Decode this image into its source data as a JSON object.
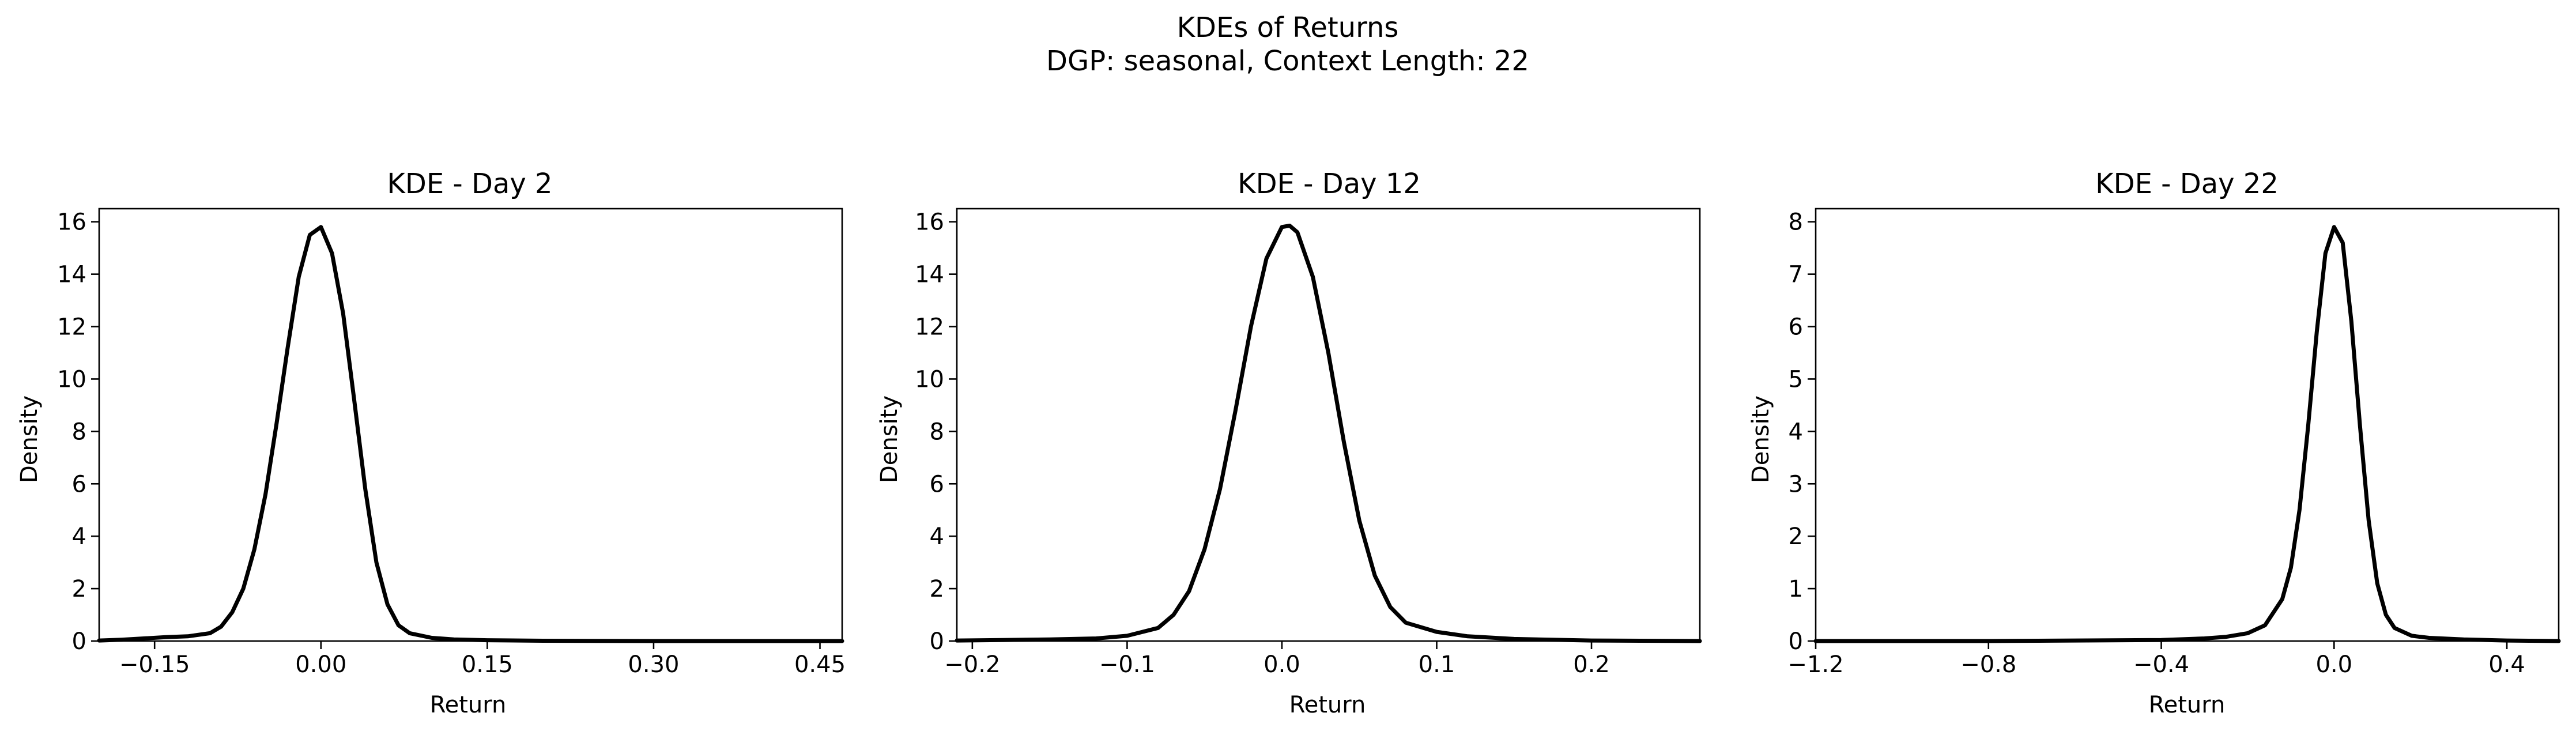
{
  "figure": {
    "title_line1": "KDEs of Returns",
    "title_line2": "DGP: seasonal, Context Length: 22",
    "line_color": "#000000"
  },
  "chart_data": [
    {
      "type": "line",
      "title": "KDE - Day 2",
      "xlabel": "Return",
      "ylabel": "Density",
      "xlim": [
        -0.2,
        0.47
      ],
      "ylim": [
        0,
        16.5
      ],
      "xticks": [
        -0.15,
        0.0,
        0.15,
        0.3,
        0.45
      ],
      "xtick_labels": [
        "−0.15",
        "0.00",
        "0.15",
        "0.30",
        "0.45"
      ],
      "yticks": [
        0,
        2,
        4,
        6,
        8,
        10,
        12,
        14,
        16
      ],
      "ytick_labels": [
        "0",
        "2",
        "4",
        "6",
        "8",
        "10",
        "12",
        "14",
        "16"
      ],
      "grid": false,
      "series": [
        {
          "x": [
            -0.2,
            -0.18,
            -0.16,
            -0.14,
            -0.12,
            -0.1,
            -0.09,
            -0.08,
            -0.07,
            -0.06,
            -0.05,
            -0.04,
            -0.03,
            -0.02,
            -0.01,
            0.0,
            0.01,
            0.02,
            0.03,
            0.04,
            0.05,
            0.06,
            0.07,
            0.08,
            0.1,
            0.12,
            0.15,
            0.2,
            0.3,
            0.47
          ],
          "y": [
            0.02,
            0.05,
            0.1,
            0.15,
            0.18,
            0.3,
            0.55,
            1.1,
            2.0,
            3.5,
            5.6,
            8.3,
            11.2,
            13.9,
            15.5,
            15.8,
            14.8,
            12.5,
            9.2,
            5.8,
            3.0,
            1.4,
            0.6,
            0.3,
            0.12,
            0.06,
            0.03,
            0.01,
            0.0,
            0.0
          ]
        }
      ]
    },
    {
      "type": "line",
      "title": "KDE - Day 12",
      "xlabel": "Return",
      "ylabel": "Density",
      "xlim": [
        -0.21,
        0.27
      ],
      "ylim": [
        0,
        16.5
      ],
      "xticks": [
        -0.2,
        -0.1,
        0.0,
        0.1,
        0.2
      ],
      "xtick_labels": [
        "−0.2",
        "−0.1",
        "0.0",
        "0.1",
        "0.2"
      ],
      "yticks": [
        0,
        2,
        4,
        6,
        8,
        10,
        12,
        14,
        16
      ],
      "ytick_labels": [
        "0",
        "2",
        "4",
        "6",
        "8",
        "10",
        "12",
        "14",
        "16"
      ],
      "grid": false,
      "series": [
        {
          "x": [
            -0.21,
            -0.18,
            -0.15,
            -0.12,
            -0.1,
            -0.08,
            -0.07,
            -0.06,
            -0.05,
            -0.04,
            -0.03,
            -0.02,
            -0.01,
            0.0,
            0.005,
            0.01,
            0.02,
            0.03,
            0.04,
            0.05,
            0.06,
            0.07,
            0.08,
            0.1,
            0.12,
            0.15,
            0.2,
            0.27
          ],
          "y": [
            0.02,
            0.04,
            0.06,
            0.1,
            0.2,
            0.5,
            1.0,
            1.9,
            3.5,
            5.8,
            8.8,
            12.0,
            14.6,
            15.8,
            15.85,
            15.6,
            13.9,
            11.0,
            7.6,
            4.6,
            2.5,
            1.3,
            0.7,
            0.35,
            0.18,
            0.08,
            0.02,
            0.0
          ]
        }
      ]
    },
    {
      "type": "line",
      "title": "KDE - Day 22",
      "xlabel": "Return",
      "ylabel": "Density",
      "xlim": [
        -1.2,
        0.52
      ],
      "ylim": [
        0,
        8.25
      ],
      "xticks": [
        -1.2,
        -0.8,
        -0.4,
        0.0,
        0.4
      ],
      "xtick_labels": [
        "−1.2",
        "−0.8",
        "−0.4",
        "0.0",
        "0.4"
      ],
      "yticks": [
        0,
        1,
        2,
        3,
        4,
        5,
        6,
        7,
        8
      ],
      "ytick_labels": [
        "0",
        "1",
        "2",
        "3",
        "4",
        "5",
        "6",
        "7",
        "8"
      ],
      "grid": false,
      "series": [
        {
          "x": [
            -1.2,
            -1.0,
            -0.8,
            -0.6,
            -0.4,
            -0.3,
            -0.25,
            -0.2,
            -0.16,
            -0.12,
            -0.1,
            -0.08,
            -0.06,
            -0.04,
            -0.02,
            0.0,
            0.02,
            0.04,
            0.06,
            0.08,
            0.1,
            0.12,
            0.14,
            0.18,
            0.22,
            0.3,
            0.4,
            0.52
          ],
          "y": [
            0.0,
            0.0,
            0.0,
            0.01,
            0.02,
            0.05,
            0.08,
            0.15,
            0.3,
            0.8,
            1.4,
            2.5,
            4.1,
            5.9,
            7.4,
            7.9,
            7.6,
            6.1,
            4.1,
            2.3,
            1.1,
            0.5,
            0.25,
            0.1,
            0.06,
            0.03,
            0.01,
            0.0
          ]
        }
      ]
    }
  ]
}
